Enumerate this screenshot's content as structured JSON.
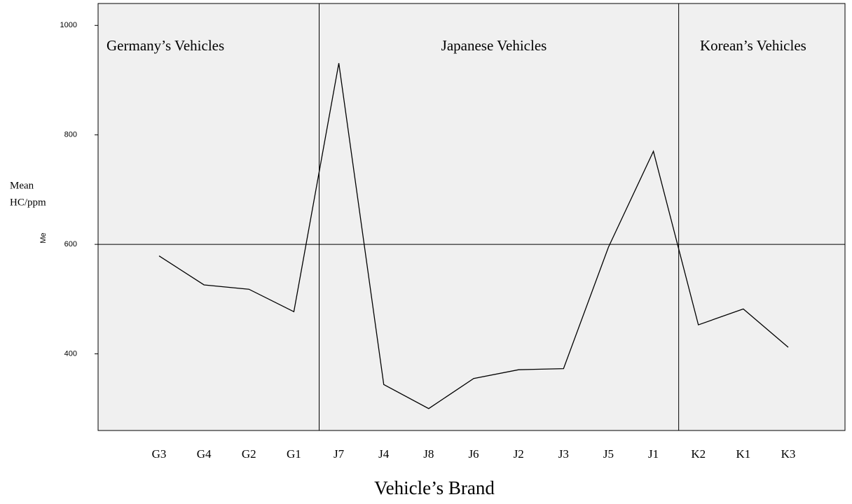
{
  "chart_data": {
    "type": "line",
    "x_label": "Vehicle’s Brand",
    "y_label_lines": [
      "Mean",
      "HC/ppm"
    ],
    "y_axis_code": "Me",
    "annotations": [
      "Germany’s Vehicles",
      "Japanese Vehicles",
      "Korean’s Vehicles"
    ],
    "categories": [
      "G3",
      "G4",
      "G2",
      "G1",
      "J7",
      "J4",
      "J8",
      "J6",
      "J2",
      "J3",
      "J5",
      "J1",
      "K2",
      "K1",
      "K3"
    ],
    "series": [
      {
        "name": "Mean HC/ppm",
        "color": "#000000",
        "values": [
          579,
          526,
          518,
          477,
          931,
          344,
          300,
          355,
          371,
          373,
          595,
          770,
          453,
          482,
          412
        ]
      }
    ],
    "reference_line_y": 600,
    "ylim": [
      260,
      1040
    ],
    "yticks": [
      400,
      600,
      800,
      1000
    ]
  }
}
